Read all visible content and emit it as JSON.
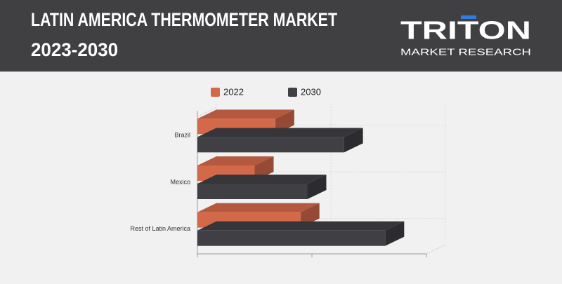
{
  "header": {
    "logo": "TRITON",
    "logo_tagline": "MARKET RESEARCH"
  },
  "chart_data": {
    "type": "bar3d",
    "orientation": "horizontal",
    "title": [
      "LATIN AMERICA THERMOMETER MARKET",
      "2023-2030"
    ],
    "categories": [
      "Brazil",
      "Mexico",
      "Rest of Latin America"
    ],
    "series": [
      {
        "name": "2022",
        "color": "#d4694a",
        "values": [
          34,
          25,
          45
        ]
      },
      {
        "name": "2030",
        "color": "#3f3f44",
        "values": [
          64,
          48,
          82
        ]
      }
    ],
    "xlim": [
      0,
      100
    ],
    "grid": true,
    "legend": "top"
  }
}
